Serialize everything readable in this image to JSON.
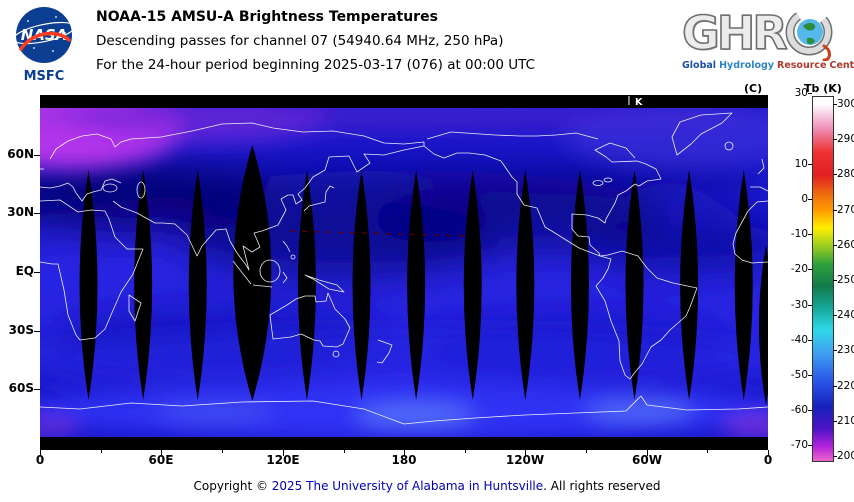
{
  "header": {
    "title": "NOAA-15 AMSU-A Brightness Temperatures",
    "line2": "Descending passes for channel 07 (54940.64 MHz, 250 hPa)",
    "line3": "For the 24-hour period beginning 2025-03-17 (076) at 00:00 UTC",
    "nasa": {
      "wordmark": "NASA",
      "center": "MSFC"
    },
    "ghrc": {
      "acronym": "GHRC",
      "letters": "GHR",
      "tagline": [
        {
          "text": "Global",
          "color": "#1b4fa8"
        },
        {
          "text": "Hydrology",
          "color": "#2e86c8"
        },
        {
          "text": "Resource",
          "color": "#b03a2e"
        },
        {
          "text": "Center",
          "color": "#b03a2e"
        }
      ]
    }
  },
  "map": {
    "lat_labels": [
      "60N",
      "30N",
      "EQ",
      "30S",
      "60S"
    ],
    "lon_labels": [
      "0",
      "60E",
      "120E",
      "180",
      "120W",
      "60W",
      "0"
    ],
    "pass_marker": "K",
    "orbit_gaps": [
      {
        "lon": 24
      },
      {
        "lon": 51
      },
      {
        "lon": 78
      },
      {
        "lon": 105,
        "wide": true
      },
      {
        "lon": 132
      },
      {
        "lon": 159
      },
      {
        "lon": 186
      },
      {
        "lon": 214
      },
      {
        "lon": 240
      },
      {
        "lon": 267
      },
      {
        "lon": 294
      },
      {
        "lon": 321
      },
      {
        "lon": 348
      },
      {
        "lon": 359,
        "short": true
      }
    ]
  },
  "colorbar": {
    "celsius_header": "(C)",
    "kelvin_header": "Tb (K)",
    "celsius_ticks": [
      "30",
      "10",
      "0",
      "-10",
      "-20",
      "-30",
      "-40",
      "-50",
      "-60",
      "-70"
    ],
    "kelvin_ticks": [
      "300",
      "290",
      "280",
      "270",
      "260",
      "250",
      "240",
      "230",
      "220",
      "210",
      "200"
    ]
  },
  "footer": {
    "prefix": "Copyright © ",
    "link": "2025 The University of Alabama in Huntsville",
    "suffix": ". All rights reserved"
  },
  "colors": {
    "nasa_blue": "#0b3d91",
    "nasa_red": "#fc3d21",
    "link_blue": "#0000bb",
    "map_base_blue": "#1b19ce",
    "gap_black": "#000000"
  }
}
